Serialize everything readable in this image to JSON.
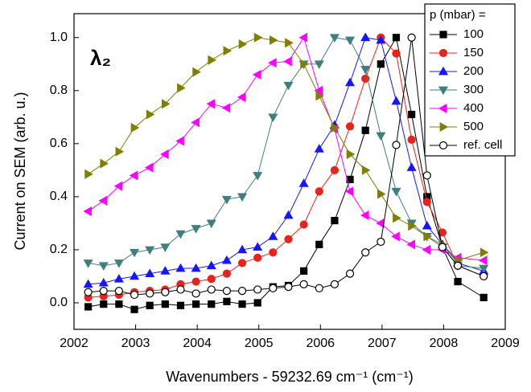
{
  "chart_data": {
    "type": "line",
    "annotation": "λ₂",
    "x_label": "Wavenumbers - 59232.69 cm⁻¹ (cm⁻¹)",
    "y_label": "Current on SEM (arb. u.)",
    "legend_title": "p (mbar) =",
    "legend_position": "upper right",
    "xlim": [
      2002,
      2009
    ],
    "ylim": [
      -0.1,
      1.09
    ],
    "xticks": [
      2002,
      2003,
      2004,
      2005,
      2006,
      2007,
      2008,
      2009
    ],
    "yticks": [
      {
        "value": 0,
        "label": "0.0"
      },
      0.2,
      0.4,
      0.6,
      0.8,
      {
        "value": 1,
        "label": "1.0"
      }
    ],
    "x": [
      2002.23,
      2002.48,
      2002.73,
      2002.98,
      2003.23,
      2003.48,
      2003.73,
      2003.98,
      2004.23,
      2004.48,
      2004.73,
      2004.98,
      2005.23,
      2005.48,
      2005.73,
      2005.98,
      2006.23,
      2006.48,
      2006.73,
      2006.98,
      2007.23,
      2007.48,
      2007.73,
      2007.98,
      2008.23,
      2008.65
    ],
    "series": [
      {
        "name": "100",
        "color": "#000000",
        "marker": "square",
        "filled": true,
        "values": [
          -0.015,
          -0.005,
          -0.005,
          -0.025,
          -0.01,
          -0.005,
          -0.01,
          -0.005,
          -0.005,
          0.005,
          -0.005,
          0.0,
          0.06,
          0.065,
          0.12,
          0.22,
          0.31,
          0.465,
          0.65,
          0.9,
          1.0,
          0.71,
          0.4,
          0.21,
          0.08,
          0.02
        ]
      },
      {
        "name": "150",
        "color": "#e8231c",
        "marker": "circle",
        "filled": true,
        "values": [
          0.02,
          0.025,
          0.03,
          0.04,
          0.045,
          0.05,
          0.07,
          0.08,
          0.09,
          0.11,
          0.15,
          0.17,
          0.19,
          0.24,
          0.295,
          0.42,
          0.5,
          0.665,
          0.845,
          1.0,
          0.94,
          0.615,
          0.38,
          0.265,
          0.14,
          0.1
        ]
      },
      {
        "name": "200",
        "color": "#1515ff",
        "marker": "triangle-up",
        "filled": true,
        "values": [
          0.07,
          0.075,
          0.09,
          0.1,
          0.11,
          0.12,
          0.13,
          0.13,
          0.14,
          0.16,
          0.2,
          0.21,
          0.25,
          0.33,
          0.45,
          0.58,
          0.67,
          0.83,
          1.0,
          0.99,
          0.76,
          0.51,
          0.29,
          0.22,
          0.15,
          0.12
        ]
      },
      {
        "name": "300",
        "color": "#3f7f7f",
        "marker": "triangle-down",
        "filled": true,
        "values": [
          0.15,
          0.14,
          0.15,
          0.19,
          0.2,
          0.21,
          0.26,
          0.28,
          0.3,
          0.39,
          0.4,
          0.48,
          0.7,
          0.82,
          0.9,
          0.9,
          1.0,
          0.99,
          0.88,
          0.63,
          0.42,
          0.3,
          0.25,
          0.21,
          0.14,
          0.13
        ]
      },
      {
        "name": "400",
        "color": "#ff00ff",
        "marker": "triangle-left",
        "filled": true,
        "values": [
          0.345,
          0.385,
          0.44,
          0.48,
          0.51,
          0.56,
          0.61,
          0.68,
          0.75,
          0.735,
          0.775,
          0.86,
          0.905,
          0.91,
          1.0,
          0.8,
          0.655,
          0.42,
          0.33,
          0.3,
          0.25,
          0.22,
          0.2,
          0.2,
          0.17,
          0.16
        ]
      },
      {
        "name": "500",
        "color": "#7f7f00",
        "marker": "triangle-right",
        "filled": true,
        "values": [
          0.485,
          0.525,
          0.57,
          0.66,
          0.71,
          0.75,
          0.81,
          0.87,
          0.915,
          0.95,
          0.975,
          1.0,
          0.99,
          0.98,
          0.9,
          0.78,
          0.66,
          0.56,
          0.5,
          0.41,
          0.32,
          0.29,
          0.25,
          0.22,
          0.16,
          0.19
        ]
      },
      {
        "name": "ref. cell",
        "color": "#000000",
        "marker": "circle",
        "filled": false,
        "values": [
          0.04,
          0.045,
          0.045,
          0.03,
          0.035,
          0.04,
          0.05,
          0.035,
          0.05,
          0.045,
          0.045,
          0.05,
          0.055,
          0.06,
          0.07,
          0.055,
          0.07,
          0.11,
          0.19,
          0.23,
          0.595,
          1.0,
          0.48,
          0.21,
          0.14,
          0.1
        ]
      }
    ]
  }
}
